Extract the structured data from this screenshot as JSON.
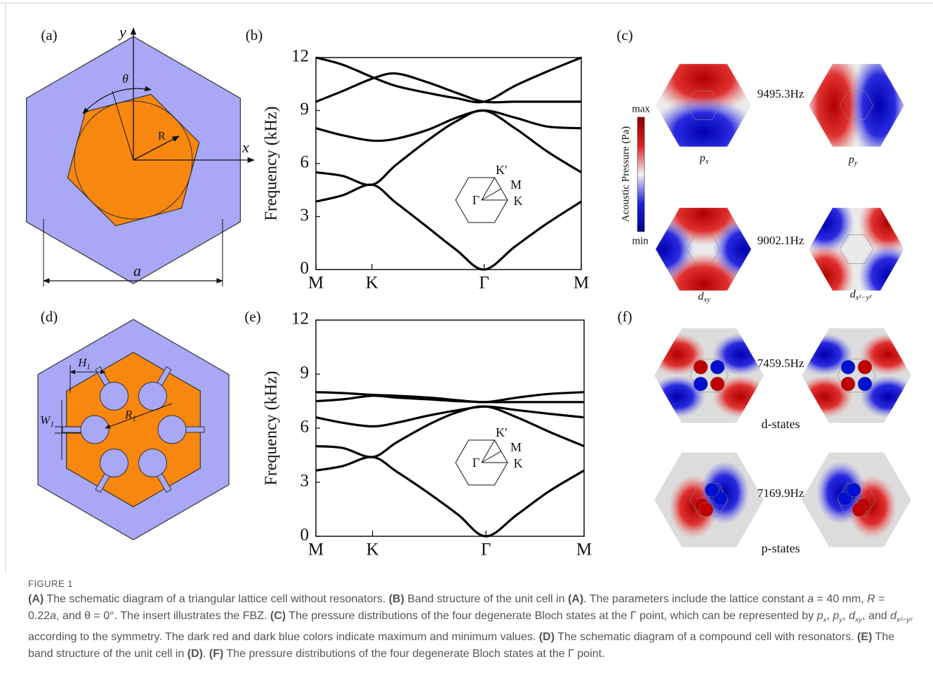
{
  "panel_labels": [
    "(a)",
    "(b)",
    "(c)",
    "(d)",
    "(e)",
    "(f)"
  ],
  "diagram_a": {
    "y_axis": "y",
    "x_axis": "x",
    "angle": "θ",
    "radius": "R",
    "lattice": "a"
  },
  "diagram_d": {
    "H": {
      "base": "H",
      "sub": "1"
    },
    "W": {
      "base": "W",
      "sub": "1"
    },
    "R": {
      "base": "R",
      "sub": "1"
    }
  },
  "chart_data": [
    {
      "type": "line",
      "ylabel": "Frequency (kHz)",
      "x": [
        0,
        0.1,
        0.211,
        0.3,
        0.42,
        0.53,
        0.634,
        0.75,
        0.87,
        1
      ],
      "xlim": [
        0,
        1
      ],
      "xticks": [
        {
          "value": 0,
          "label": "M"
        },
        {
          "value": 0.211,
          "label": "K"
        },
        {
          "value": 0.634,
          "label": "Γ"
        },
        {
          "value": 1,
          "label": "M"
        }
      ],
      "ylim": [
        0,
        12
      ],
      "yticks": [
        0,
        3,
        6,
        9,
        12
      ],
      "inset_labels": [
        "K′",
        "M",
        "Γ",
        "K"
      ],
      "series": [
        {
          "color": "#000000",
          "values": [
            3.85,
            4.2,
            4.8,
            3.8,
            2.4,
            1.1,
            0,
            1.3,
            2.6,
            3.85
          ]
        },
        {
          "color": "#000000",
          "values": [
            5.5,
            5.3,
            4.8,
            5.9,
            7.3,
            8.4,
            9.0,
            8.0,
            6.7,
            5.5
          ]
        },
        {
          "color": "#000000",
          "values": [
            8.0,
            7.6,
            7.3,
            7.4,
            7.9,
            8.6,
            9.0,
            8.6,
            8.1,
            8.0
          ]
        },
        {
          "color": "#000000",
          "values": [
            9.5,
            10.1,
            10.8,
            11.1,
            10.6,
            10.0,
            9.5,
            9.5,
            9.5,
            9.5
          ]
        },
        {
          "color": "#000000",
          "values": [
            12.0,
            11.6,
            10.9,
            10.4,
            10.0,
            9.7,
            9.5,
            10.4,
            11.2,
            12.0
          ]
        }
      ]
    },
    {
      "type": "line",
      "ylabel": "Frequency (kHz)",
      "x": [
        0,
        0.1,
        0.211,
        0.3,
        0.42,
        0.53,
        0.634,
        0.75,
        0.87,
        1
      ],
      "xlim": [
        0,
        1
      ],
      "xticks": [
        {
          "value": 0,
          "label": "M"
        },
        {
          "value": 0.211,
          "label": "K"
        },
        {
          "value": 0.634,
          "label": "Γ"
        },
        {
          "value": 1,
          "label": "M"
        }
      ],
      "ylim": [
        0,
        12
      ],
      "yticks": [
        0,
        3,
        6,
        9,
        12
      ],
      "inset_labels": [
        "K′",
        "M",
        "Γ",
        "K"
      ],
      "series": [
        {
          "color": "#000000",
          "values": [
            3.65,
            3.9,
            4.4,
            3.6,
            2.4,
            1.2,
            0,
            1.2,
            2.5,
            3.65
          ]
        },
        {
          "color": "#000000",
          "values": [
            5.0,
            4.9,
            4.4,
            5.2,
            6.2,
            6.9,
            7.2,
            6.6,
            5.8,
            5.0
          ]
        },
        {
          "color": "#000000",
          "values": [
            6.6,
            6.3,
            6.1,
            6.3,
            6.7,
            7.0,
            7.2,
            7.0,
            6.8,
            6.6
          ]
        },
        {
          "color": "#000000",
          "values": [
            7.5,
            7.6,
            7.8,
            7.7,
            7.6,
            7.5,
            7.45,
            7.45,
            7.45,
            7.45
          ]
        },
        {
          "color": "#000000",
          "values": [
            8.0,
            7.95,
            7.85,
            7.8,
            7.7,
            7.55,
            7.45,
            7.7,
            7.9,
            8.0
          ]
        }
      ]
    }
  ],
  "field_maps_c": {
    "freqs": [
      "9495.3Hz",
      "9002.1Hz"
    ],
    "modes": [
      {
        "base": "p",
        "sub": "x"
      },
      {
        "base": "p",
        "sub": "y"
      },
      {
        "base": "d",
        "sub": "xy"
      },
      {
        "base": "d",
        "sub": "x²−y²"
      }
    ],
    "colorbar": {
      "title": "Acoustic Pressure (Pa)",
      "max": "max",
      "min": "min"
    }
  },
  "field_maps_f": {
    "freqs": [
      "7459.5Hz",
      "7169.9Hz"
    ],
    "states": [
      "d-states",
      "p-states"
    ]
  },
  "caption": {
    "label": "FIGURE 1",
    "parts": [
      "(A)",
      " The schematic diagram of a triangular lattice cell without resonators. ",
      "(B)",
      " Band structure of the unit cell in ",
      "(A)",
      ". The parameters include the lattice constant ",
      "a",
      " = 40 mm, ",
      "R",
      " = 0.22",
      "a",
      ", and θ = 0°. The insert illustrates the FBZ. ",
      "(C)",
      " The pressure distributions of the four degenerate Bloch states at the Γ point, which can be represented by ",
      "p",
      "x",
      ", ",
      "p",
      "y",
      ", ",
      "d",
      "xy",
      ", and ",
      "d",
      "x²−y²",
      " according to the symmetry. The dark red and dark blue colors indicate maximum and minimum values. ",
      "(D)",
      " The schematic diagram of a compound cell with resonators. ",
      "(E)",
      " The band structure of the unit cell in ",
      "(D)",
      ". ",
      "(F)",
      " The pressure distributions of the four degenerate Bloch states at the Γ point."
    ]
  }
}
